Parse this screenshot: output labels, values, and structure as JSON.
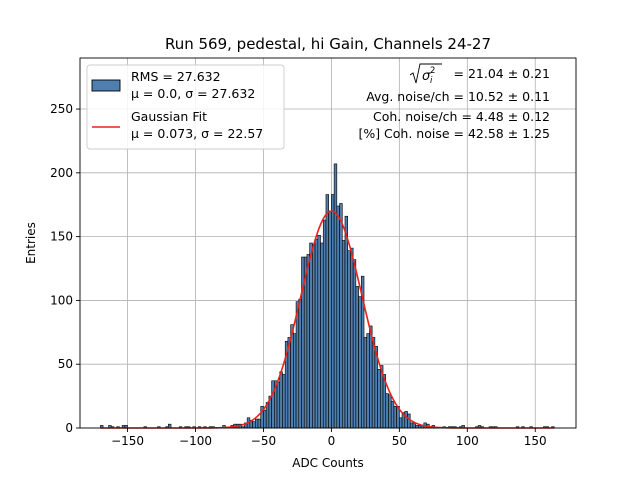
{
  "chart_data": {
    "type": "bar",
    "title": "Run 569, pedestal, hi Gain, Channels 24-27",
    "xlabel": "ADC Counts",
    "ylabel": "Entries",
    "xlim": [
      -185,
      180
    ],
    "ylim": [
      0,
      290
    ],
    "xticks": [
      -150,
      -100,
      -50,
      0,
      50,
      100,
      150
    ],
    "xtick_labels": [
      "−150",
      "−100",
      "−50",
      "0",
      "50",
      "100",
      "150"
    ],
    "yticks": [
      0,
      50,
      100,
      150,
      200,
      250
    ],
    "ytick_labels": [
      "0",
      "50",
      "100",
      "150",
      "200",
      "250"
    ],
    "grid": true,
    "legend_placement": "top-left",
    "histogram": {
      "name": "RMS = 27.632",
      "name_line2": "μ = 0.0, σ = 27.632",
      "color": "#4f7fb0",
      "edge_color": "#000000",
      "bin_width": 2,
      "x_start": -170,
      "x_end": 164,
      "mean": 0.0,
      "sigma": 27.632,
      "peak_entries": 207,
      "peak_x": 3
    },
    "fit": {
      "name": "Gaussian Fit",
      "name_line2": "μ = 0.073, σ = 22.57",
      "color": "#e8221c",
      "mu": 0.073,
      "sigma": 22.57,
      "amplitude": 170
    },
    "annotations": {
      "sigma_expr": "= 21.04 ± 0.21",
      "avg_noise": "Avg. noise/ch = 10.52 ± 0.11",
      "coh_noise": "Coh. noise/ch = 4.48 ± 0.12",
      "pct_coh": "[%] Coh. noise = 42.58 ± 1.25"
    }
  }
}
